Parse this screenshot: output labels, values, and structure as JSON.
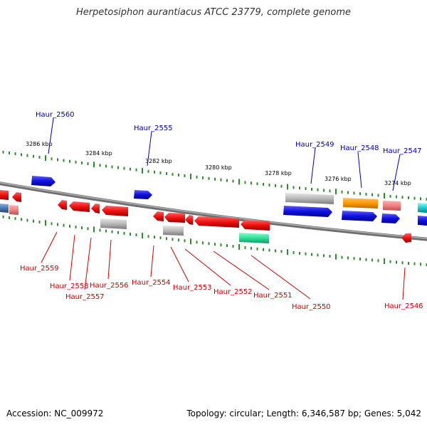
{
  "title": "Herpetosiphon aurantiacus ATCC 23779, complete genome",
  "footer": {
    "accession": "Accession: NC_009972",
    "topology": "Topology: circular; Length: 6,346,587 bp; Genes: 5,042"
  },
  "colors": {
    "forward_label": "#0000aa",
    "reverse_label": "#cc0000",
    "backbone": "#8a8a8a",
    "tick": "#2e8b2e",
    "blue": "#1010e0",
    "red": "#ee1111",
    "light_red": "#f08080",
    "gray": "#b8b8b8",
    "orange": "#ff9900",
    "teal": "#33dd99",
    "cyan": "#22cccc",
    "steel": "#4a78b0"
  },
  "kbp_markers": [
    "3286 kbp",
    "3284 kbp",
    "3282 kbp",
    "3280 kbp",
    "3278 kbp",
    "3276 kbp",
    "3274 kbp"
  ],
  "forward_genes": [
    "Haur_2560",
    "Haur_2555",
    "Haur_2549",
    "Haur_2548",
    "Haur_2547"
  ],
  "reverse_genes": [
    "Haur_2559",
    "Haur_2558",
    "Haur_2557",
    "Haur_2556",
    "Haur_2554",
    "Haur_2553",
    "Haur_2552",
    "Haur_2551",
    "Haur_2550",
    "Haur_2546"
  ]
}
